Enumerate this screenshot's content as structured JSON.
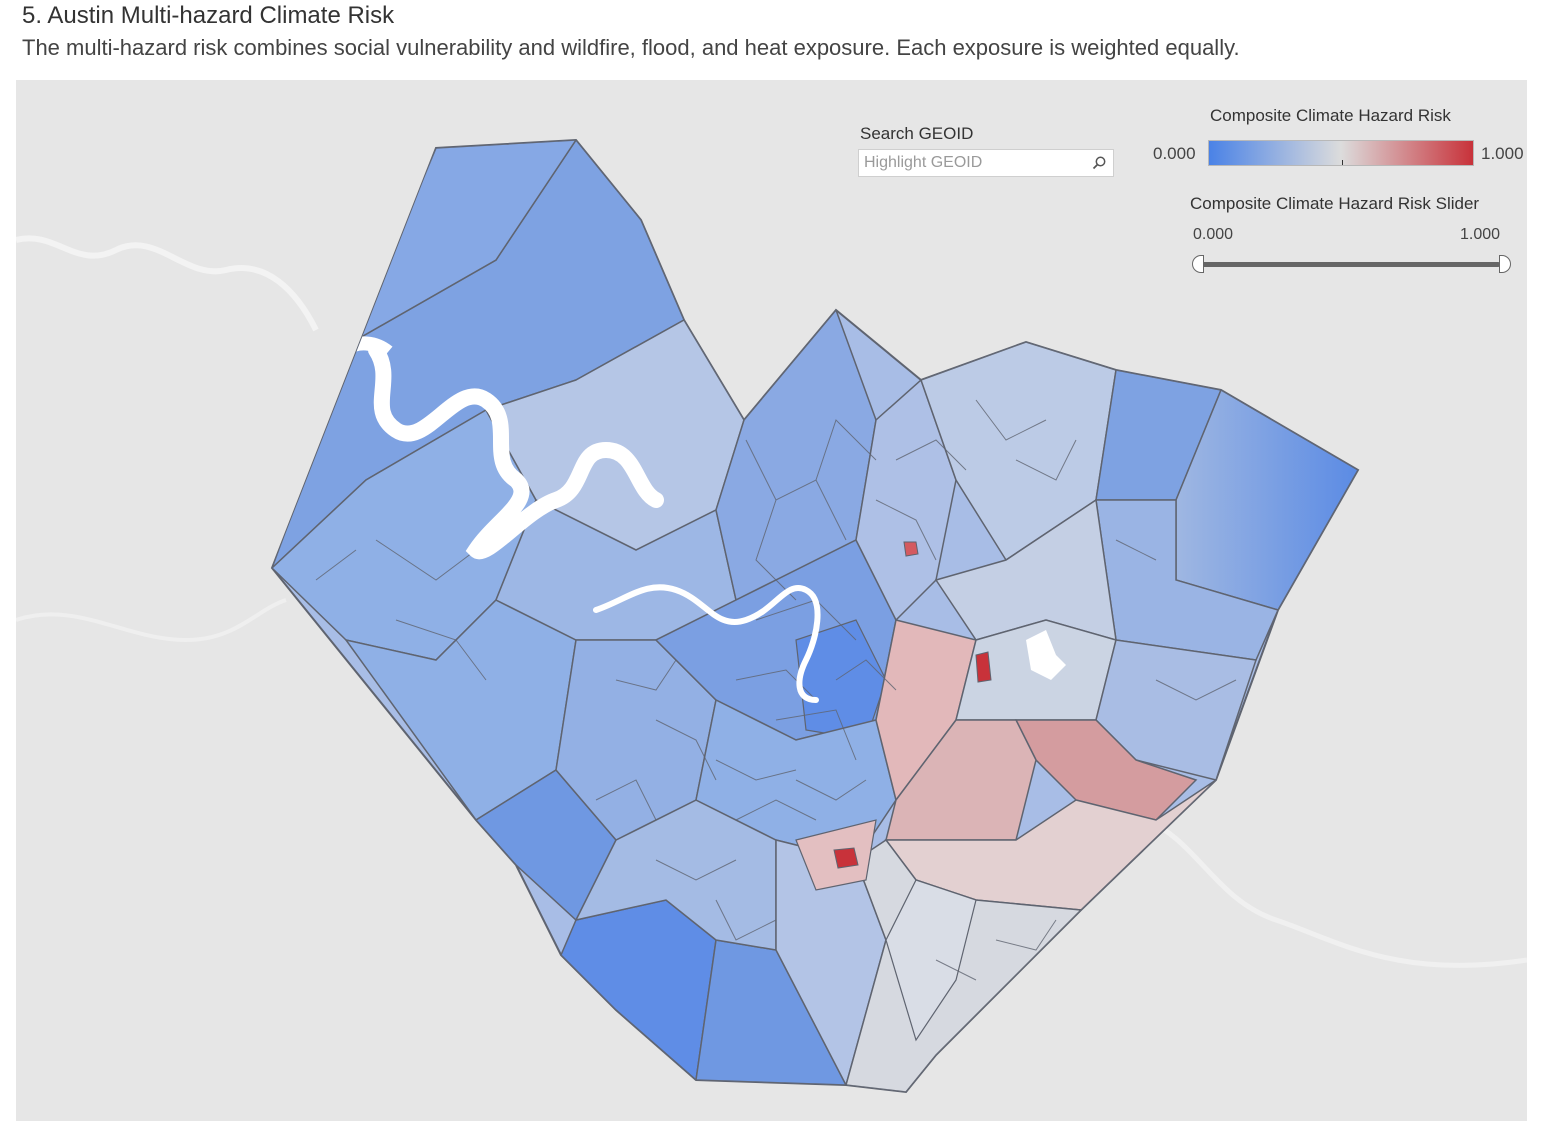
{
  "header": {
    "title": "5. Austin Multi-hazard Climate Risk",
    "subtitle": "The multi-hazard risk combines social vulnerability and wildfire, flood, and heat exposure. Each exposure is weighted equally."
  },
  "search": {
    "label": "Search GEOID",
    "placeholder": "Highlight GEOID",
    "icon": "search-icon"
  },
  "legend": {
    "title": "Composite Climate Hazard Risk",
    "min_label": "0.000",
    "max_label": "1.000",
    "colors": {
      "low": "#4a82e6",
      "mid": "#dcdcdc",
      "high": "#c8323a"
    }
  },
  "slider": {
    "title": "Composite Climate Hazard Risk Slider",
    "min_label": "0.000",
    "max_label": "1.000",
    "range_low": 0.0,
    "range_high": 1.0
  },
  "map": {
    "background_color": "#e6e6e6",
    "boundary_color": "#5f6470"
  }
}
